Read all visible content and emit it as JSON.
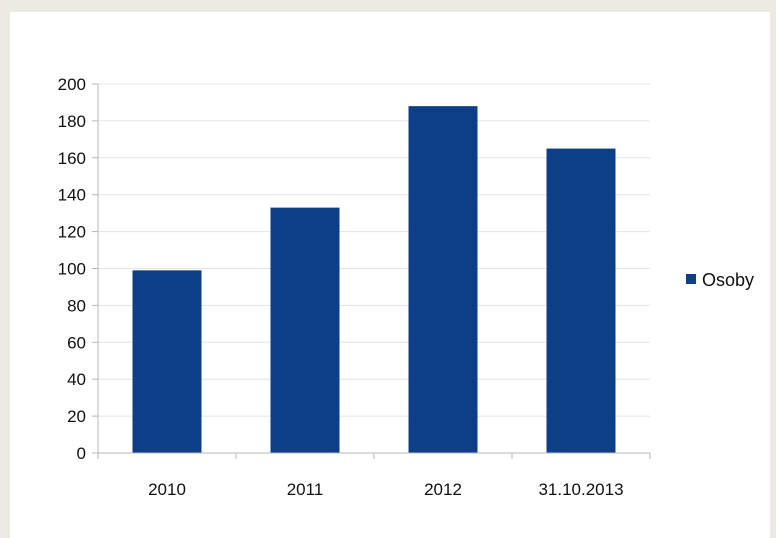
{
  "chart_data": {
    "type": "bar",
    "categories": [
      "2010",
      "2011",
      "2012",
      "31.10.2013"
    ],
    "series": [
      {
        "name": "Osoby",
        "values": [
          99,
          133,
          188,
          165
        ]
      }
    ],
    "title": "",
    "xlabel": "",
    "ylabel": "",
    "ylim": [
      0,
      200
    ],
    "yticks": [
      0,
      20,
      40,
      60,
      80,
      100,
      120,
      140,
      160,
      180,
      200
    ],
    "grid": true,
    "legend": "right",
    "colors": {
      "bar": "#0d3f88",
      "grid": "#e4e4e4",
      "axis": "#b8b8b8"
    }
  }
}
